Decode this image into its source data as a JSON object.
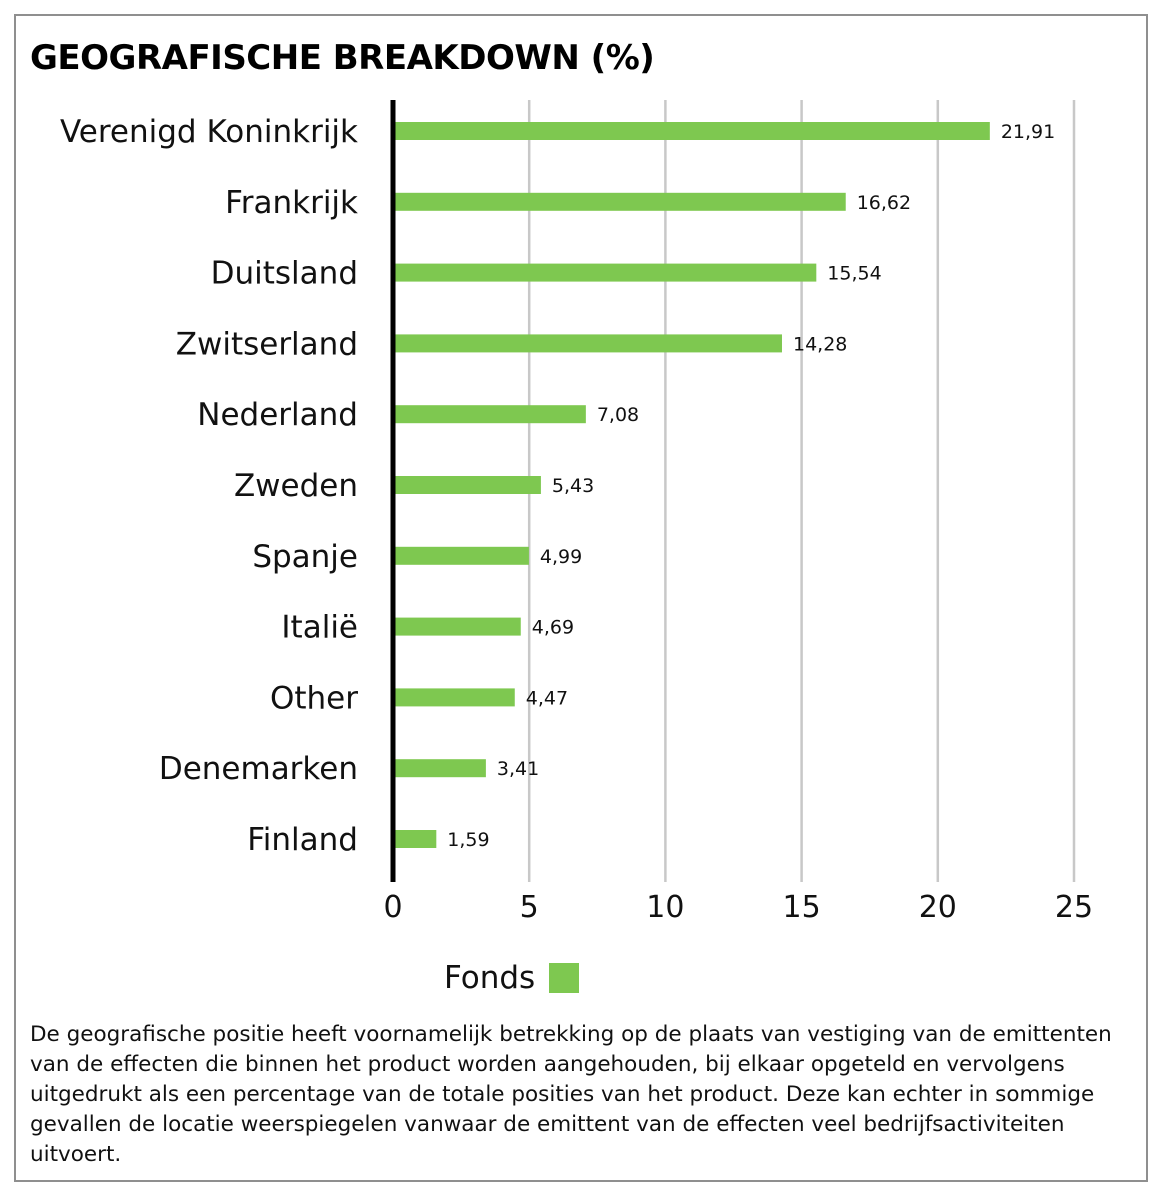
{
  "title": "GEOGRAFISCHE BREAKDOWN (%)",
  "legend": {
    "label": "Fonds"
  },
  "colors": {
    "bar": "#7ec850",
    "grid": "#c8c8c8",
    "axis": "#000000"
  },
  "note": "De geografische positie heeft voornamelijk betrekking op de plaats van vestiging van de emittenten van de effecten die binnen het product worden aangehouden, bij elkaar opgeteld en vervolgens uitgedrukt als een percentage van de totale posities van het product. Deze kan echter in sommige gevallen de locatie weerspiegelen vanwaar de emittent van de effecten veel bedrijfsactiviteiten uitvoert.",
  "chart_data": {
    "type": "bar",
    "orientation": "horizontal",
    "title": "GEOGRAFISCHE BREAKDOWN (%)",
    "categories": [
      "Verenigd Koninkrijk",
      "Frankrijk",
      "Duitsland",
      "Zwitserland",
      "Nederland",
      "Zweden",
      "Spanje",
      "Italië",
      "Other",
      "Denemarken",
      "Finland"
    ],
    "series": [
      {
        "name": "Fonds",
        "values": [
          21.91,
          16.62,
          15.54,
          14.28,
          7.08,
          5.43,
          4.99,
          4.69,
          4.47,
          3.41,
          1.59
        ],
        "value_labels": [
          "21,91",
          "16,62",
          "15,54",
          "14,28",
          "7,08",
          "5,43",
          "4,99",
          "4,69",
          "4,47",
          "3,41",
          "1,59"
        ]
      }
    ],
    "xlim": [
      0,
      25
    ],
    "xticks": [
      0,
      5,
      10,
      15,
      20,
      25
    ],
    "grid": true,
    "legend_position": "bottom"
  }
}
